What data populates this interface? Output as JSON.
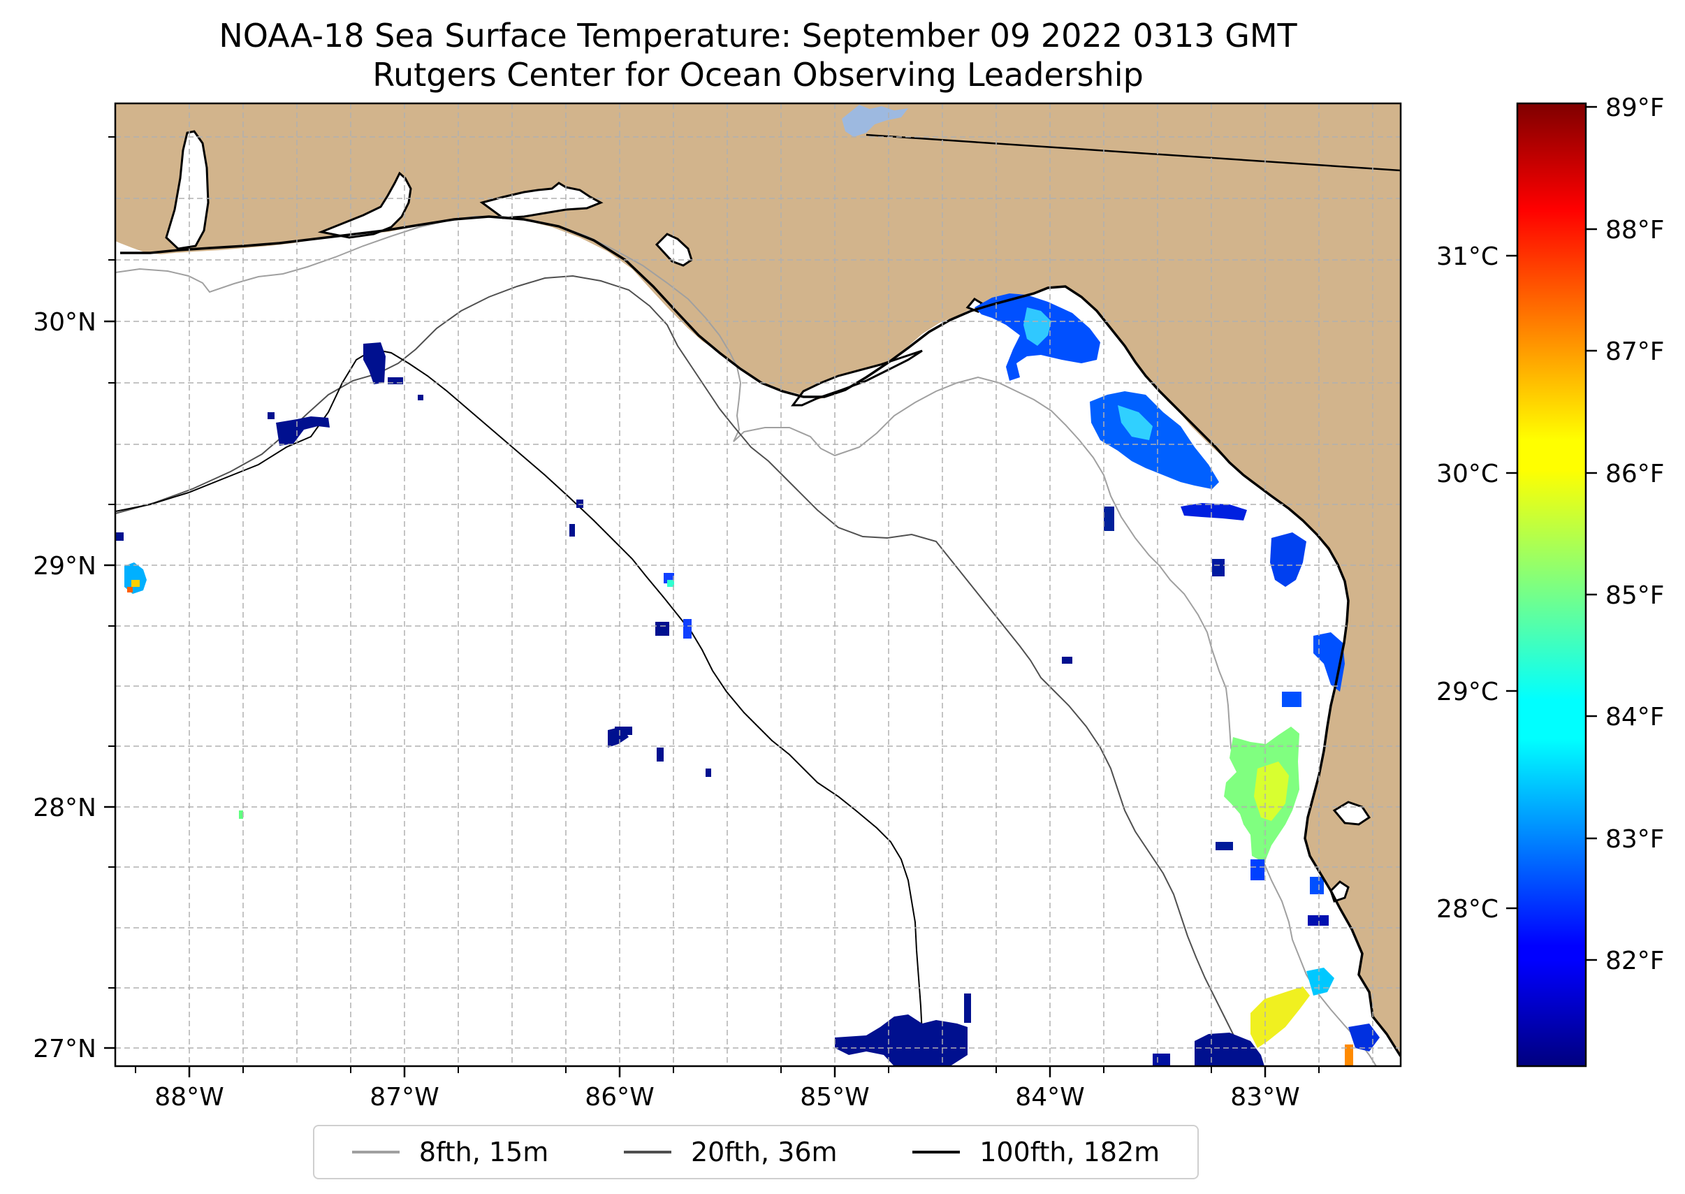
{
  "title": {
    "line1": "NOAA-18 Sea Surface Temperature: September 09 2022 0313 GMT",
    "line2": "Rutgers Center for Ocean Observing Leadership"
  },
  "map": {
    "lon_range": [
      -88.33,
      -82.37
    ],
    "lat_range": [
      26.93,
      30.83
    ],
    "x_ticks": [
      "88°W",
      "87°W",
      "86°W",
      "85°W",
      "84°W",
      "83°W"
    ],
    "y_ticks": [
      "27°N",
      "28°N",
      "29°N",
      "30°N"
    ],
    "colors": {
      "land": "#d2b48c",
      "ocean": "#ffffff",
      "coast": "#000000",
      "grid": "#b0b0b0",
      "lake": "#9db9e0"
    }
  },
  "colorbar": {
    "colormap": "jet",
    "range_f": [
      81.2,
      89.1
    ],
    "fahrenheit_ticks": [
      "82°F",
      "83°F",
      "84°F",
      "85°F",
      "86°F",
      "87°F",
      "88°F",
      "89°F"
    ],
    "celsius_ticks": [
      "28°C",
      "29°C",
      "30°C",
      "31°C"
    ]
  },
  "legend": {
    "items": [
      {
        "label": "8fth, 15m",
        "color": "#a0a0a0"
      },
      {
        "label": "20fth, 36m",
        "color": "#505050"
      },
      {
        "label": "100fth, 182m",
        "color": "#000000"
      }
    ]
  }
}
